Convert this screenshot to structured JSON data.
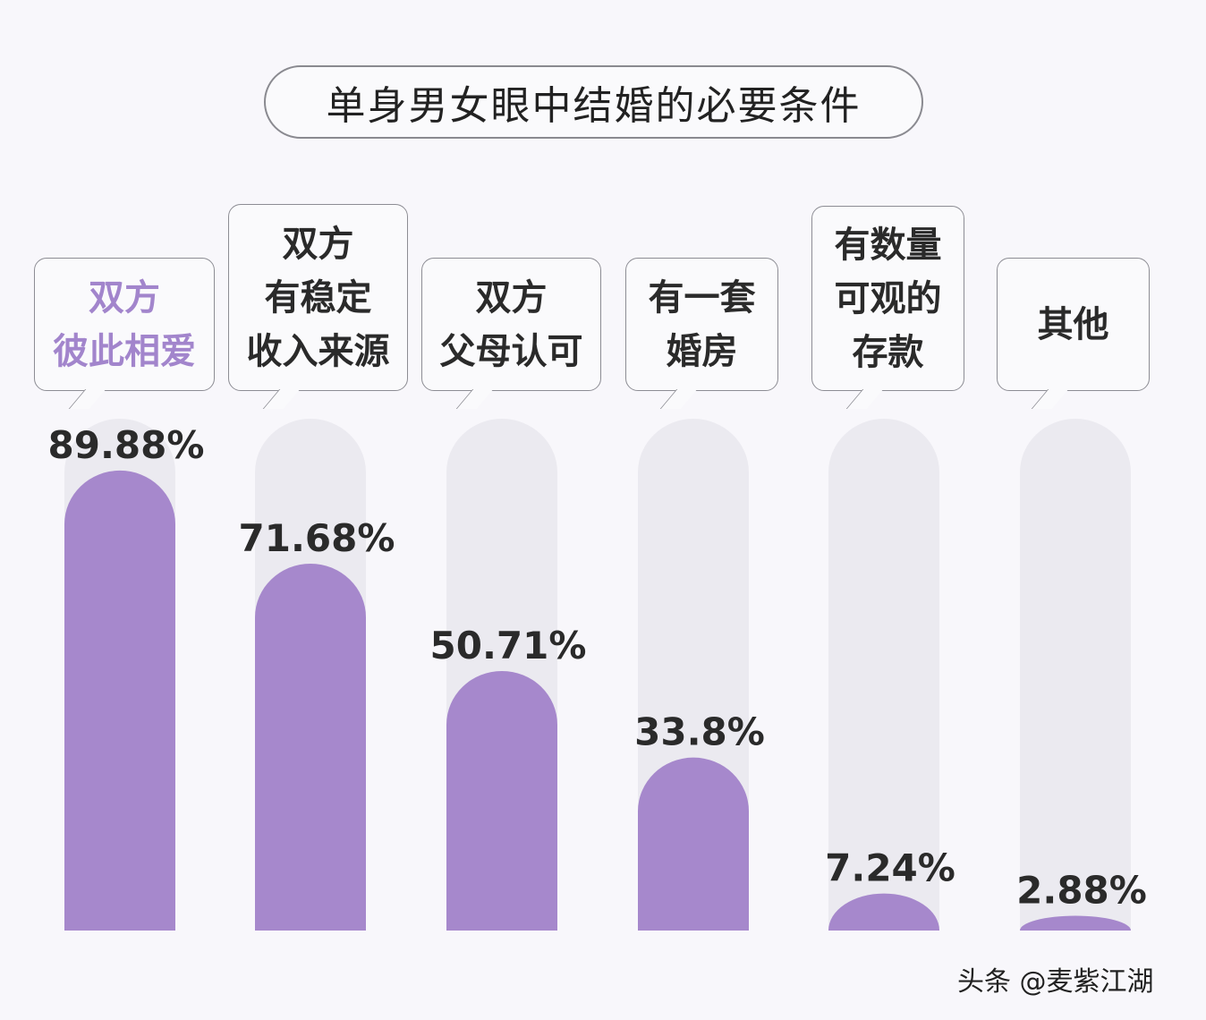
{
  "chart_data": {
    "type": "bar",
    "title": "单身男女眼中结婚的必要条件",
    "categories": [
      "双方\n彼此相爱",
      "双方\n有稳定\n收入来源",
      "双方\n父母认可",
      "有一套\n婚房",
      "有数量\n可观的\n存款",
      "其他"
    ],
    "values": [
      89.88,
      71.68,
      50.71,
      33.8,
      7.24,
      2.88
    ],
    "value_labels": [
      "89.88%",
      "71.68%",
      "50.71%",
      "33.8%",
      "7.24%",
      "2.88%"
    ],
    "ylim": [
      0,
      100
    ],
    "grid": false,
    "highlight_index": 0,
    "colors": {
      "bar": "#a688cc",
      "track": "#ebeaf0",
      "highlight_text": "#a285cc",
      "background": "#f8f7fb"
    }
  },
  "watermark": "头条 @麦紫江湖"
}
